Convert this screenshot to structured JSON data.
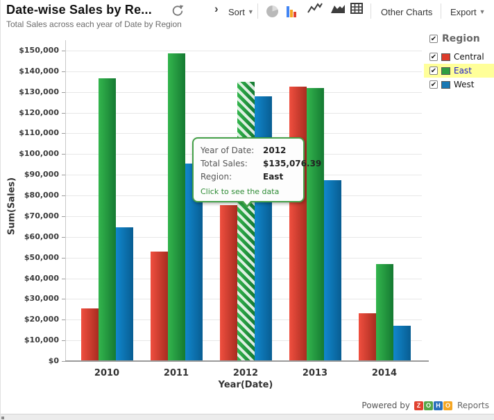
{
  "header": {
    "title": "Date-wise Sales by Re...",
    "subtitle": "Total Sales across each year of Date by Region",
    "toolbar": {
      "sort_label": "Sort",
      "other_charts_label": "Other Charts",
      "export_label": "Export",
      "caret": "▼",
      "chevron": "›",
      "bar_icon_colors": [
        "#4285f4",
        "#f5a623",
        "#e0412f"
      ]
    }
  },
  "legend": {
    "title": "Region",
    "check_glyph": "✔",
    "highlight_color": "#ffff99",
    "items": [
      {
        "label": "Central",
        "color": "#dd3b2b",
        "checked": true,
        "highlighted": false
      },
      {
        "label": "East",
        "color": "#2f9e41",
        "checked": true,
        "highlighted": true
      },
      {
        "label": "West",
        "color": "#1878b4",
        "checked": true,
        "highlighted": false
      }
    ]
  },
  "chart_data": {
    "type": "bar",
    "title": "Date-wise Sales by Re...",
    "xlabel": "Year(Date)",
    "ylabel": "Sum(Sales)",
    "categories": [
      "2010",
      "2011",
      "2012",
      "2013",
      "2014"
    ],
    "series": [
      {
        "name": "Central",
        "color_start": "#f04f3f",
        "color_end": "#a92c20",
        "values": [
          25500,
          53000,
          75500,
          132500,
          23000
        ]
      },
      {
        "name": "East",
        "color_start": "#33b54d",
        "color_end": "#157a32",
        "values": [
          136500,
          148800,
          135076.39,
          131900,
          47000
        ]
      },
      {
        "name": "West",
        "color_start": "#1187cd",
        "color_end": "#085d92",
        "values": [
          64500,
          95500,
          128000,
          87300,
          17000
        ]
      }
    ],
    "ylim": [
      0,
      150000
    ],
    "ytick_step": 10000,
    "ytick_prefix": "$",
    "grid": true,
    "legend_position": "right",
    "highlighted_bar": {
      "series": "East",
      "category": "2012"
    }
  },
  "tooltip": {
    "rows": [
      {
        "label": "Year of Date:",
        "value": "2012"
      },
      {
        "label": "Total Sales:",
        "value": "$135,076.39"
      },
      {
        "label": "Region:",
        "value": "East"
      }
    ],
    "link": "Click to see the data"
  },
  "footer": {
    "powered_by": "Powered by",
    "logo_letters": [
      {
        "char": "Z",
        "bg": "#e0412f"
      },
      {
        "char": "O",
        "bg": "#55a646"
      },
      {
        "char": "H",
        "bg": "#2a6fbb"
      },
      {
        "char": "O",
        "bg": "#f5a623"
      }
    ],
    "brand_suffix": "Reports"
  }
}
